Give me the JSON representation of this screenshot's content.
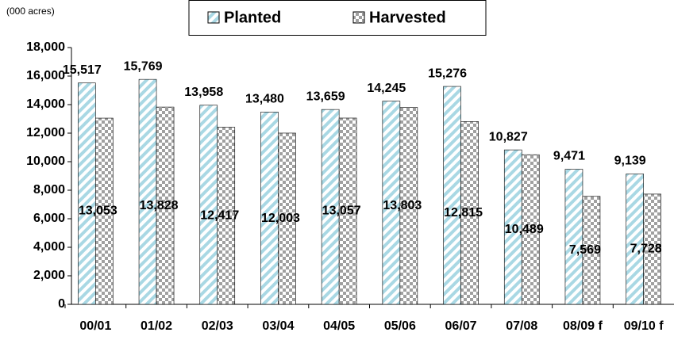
{
  "chart_data": {
    "type": "bar",
    "unit_label": "(000 acres)",
    "categories": [
      "00/01",
      "01/02",
      "02/03",
      "03/04",
      "04/05",
      "05/06",
      "06/07",
      "07/08",
      "08/09 f",
      "09/10 f"
    ],
    "series": [
      {
        "name": "Planted",
        "color": "#a9d8e4",
        "values": [
          15517,
          15769,
          13958,
          13480,
          13659,
          14245,
          15276,
          10827,
          9471,
          9139
        ],
        "value_labels": [
          "15,517",
          "15,769",
          "13,958",
          "13,480",
          "13,659",
          "14,245",
          "15,276",
          "10,827",
          "9,471",
          "9,139"
        ]
      },
      {
        "name": "Harvested",
        "color": "#a0a0a0",
        "values": [
          13053,
          13828,
          12417,
          12003,
          13057,
          13803,
          12815,
          10489,
          7569,
          7728
        ],
        "value_labels": [
          "13,053",
          "13,828",
          "12,417",
          "12,003",
          "13,057",
          "13,803",
          "12,815",
          "10,489",
          "7,569",
          "7,728"
        ]
      }
    ],
    "ylim": [
      0,
      18000
    ],
    "yticks": [
      0,
      {
        "value": 2000,
        "label": "2,000"
      },
      {
        "value": 4000,
        "label": "4,000"
      },
      {
        "value": 6000,
        "label": "6,000"
      },
      {
        "value": 8000,
        "label": "8,000"
      },
      {
        "value": 10000,
        "label": "10,000"
      },
      {
        "value": 12000,
        "label": "12,000"
      },
      {
        "value": 14000,
        "label": "14,000"
      },
      {
        "value": 16000,
        "label": "16,000"
      },
      {
        "value": 18000,
        "label": "18,000"
      }
    ],
    "grid": false
  }
}
